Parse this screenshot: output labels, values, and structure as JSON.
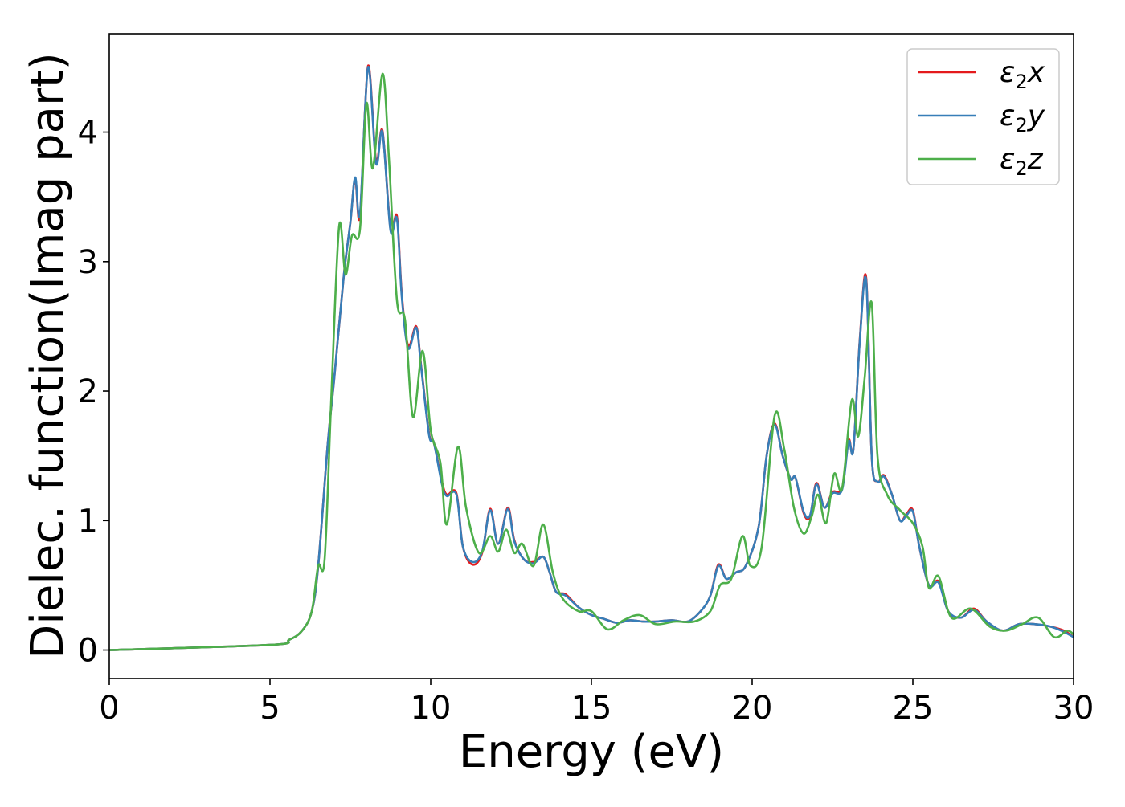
{
  "chart_data": {
    "type": "line",
    "xlabel": "Energy (eV)",
    "ylabel": "Dielec. function(Imag part)",
    "xlim": [
      0,
      30
    ],
    "ylim": [
      -0.22,
      4.76
    ],
    "xticks": [
      0,
      5,
      10,
      15,
      20,
      25,
      30
    ],
    "yticks": [
      0,
      1,
      2,
      3,
      4
    ],
    "grid": false,
    "legend_position": "top-right",
    "series": [
      {
        "name": "ε2x",
        "legend_base": "ε",
        "legend_sub": "2",
        "legend_var": "x",
        "color": "#e41a1c",
        "x": [
          0,
          5,
          5.6,
          6.0,
          6.3,
          6.5,
          6.8,
          7.0,
          7.3,
          7.5,
          7.65,
          7.8,
          8.05,
          8.3,
          8.5,
          8.75,
          8.95,
          9.1,
          9.3,
          9.55,
          9.7,
          9.95,
          10.1,
          10.35,
          10.5,
          10.8,
          11.0,
          11.3,
          11.6,
          11.85,
          12.1,
          12.4,
          12.6,
          12.9,
          13.2,
          13.5,
          13.7,
          13.9,
          14.2,
          14.6,
          15.0,
          15.4,
          15.8,
          16.2,
          16.6,
          17.0,
          17.5,
          18.0,
          18.4,
          18.7,
          18.95,
          19.2,
          19.5,
          19.8,
          20.2,
          20.45,
          20.7,
          20.95,
          21.2,
          21.35,
          21.6,
          21.8,
          22.0,
          22.25,
          22.5,
          22.8,
          23.0,
          23.15,
          23.35,
          23.55,
          23.72,
          23.9,
          24.1,
          24.35,
          24.6,
          24.8,
          25.0,
          25.2,
          25.5,
          25.8,
          26.1,
          26.5,
          26.9,
          27.3,
          27.8,
          28.3,
          28.8,
          29.3,
          29.7,
          30
        ],
        "y": [
          0,
          0.04,
          0.08,
          0.15,
          0.3,
          0.65,
          1.6,
          2.1,
          2.9,
          3.3,
          3.64,
          3.35,
          4.51,
          3.78,
          4.01,
          3.25,
          3.35,
          2.75,
          2.35,
          2.5,
          2.2,
          1.67,
          1.6,
          1.3,
          1.2,
          1.21,
          0.8,
          0.66,
          0.75,
          1.09,
          0.82,
          1.1,
          0.85,
          0.7,
          0.68,
          0.72,
          0.6,
          0.45,
          0.43,
          0.33,
          0.27,
          0.24,
          0.21,
          0.23,
          0.22,
          0.22,
          0.23,
          0.22,
          0.3,
          0.42,
          0.66,
          0.55,
          0.6,
          0.65,
          0.95,
          1.5,
          1.75,
          1.5,
          1.32,
          1.33,
          1.06,
          1.03,
          1.29,
          1.1,
          1.22,
          1.25,
          1.62,
          1.55,
          2.4,
          2.87,
          1.5,
          1.3,
          1.35,
          1.2,
          1.0,
          1.05,
          1.08,
          0.8,
          0.5,
          0.53,
          0.3,
          0.25,
          0.32,
          0.22,
          0.15,
          0.2,
          0.2,
          0.18,
          0.15,
          0.1
        ]
      },
      {
        "name": "ε2y",
        "legend_base": "ε",
        "legend_sub": "2",
        "legend_var": "y",
        "color": "#377eb8",
        "x": [
          0,
          5,
          5.6,
          6.0,
          6.3,
          6.5,
          6.8,
          7.0,
          7.3,
          7.5,
          7.65,
          7.8,
          8.05,
          8.3,
          8.5,
          8.75,
          8.95,
          9.1,
          9.3,
          9.55,
          9.7,
          9.95,
          10.1,
          10.35,
          10.5,
          10.8,
          11.0,
          11.3,
          11.6,
          11.85,
          12.1,
          12.4,
          12.6,
          12.9,
          13.2,
          13.5,
          13.7,
          13.9,
          14.2,
          14.6,
          15.0,
          15.4,
          15.8,
          16.2,
          16.6,
          17.0,
          17.5,
          18.0,
          18.4,
          18.7,
          18.95,
          19.2,
          19.5,
          19.8,
          20.2,
          20.45,
          20.7,
          20.95,
          21.2,
          21.35,
          21.6,
          21.8,
          22.0,
          22.25,
          22.5,
          22.8,
          23.0,
          23.15,
          23.35,
          23.55,
          23.72,
          23.9,
          24.1,
          24.35,
          24.6,
          24.8,
          25.0,
          25.2,
          25.5,
          25.8,
          26.1,
          26.5,
          26.9,
          27.3,
          27.8,
          28.3,
          28.8,
          29.3,
          29.7,
          30
        ],
        "y": [
          0,
          0.04,
          0.08,
          0.15,
          0.3,
          0.65,
          1.6,
          2.1,
          2.9,
          3.3,
          3.65,
          3.37,
          4.5,
          3.76,
          4.0,
          3.24,
          3.33,
          2.73,
          2.33,
          2.49,
          2.19,
          1.66,
          1.6,
          1.28,
          1.19,
          1.2,
          0.8,
          0.68,
          0.76,
          1.08,
          0.82,
          1.09,
          0.84,
          0.7,
          0.67,
          0.72,
          0.6,
          0.45,
          0.42,
          0.33,
          0.27,
          0.24,
          0.21,
          0.23,
          0.22,
          0.22,
          0.23,
          0.22,
          0.3,
          0.42,
          0.65,
          0.55,
          0.6,
          0.65,
          0.95,
          1.5,
          1.74,
          1.5,
          1.32,
          1.33,
          1.07,
          1.04,
          1.28,
          1.1,
          1.21,
          1.24,
          1.61,
          1.55,
          2.39,
          2.85,
          1.5,
          1.3,
          1.34,
          1.2,
          1.0,
          1.04,
          1.07,
          0.8,
          0.5,
          0.52,
          0.3,
          0.25,
          0.31,
          0.22,
          0.15,
          0.2,
          0.2,
          0.18,
          0.14,
          0.1
        ]
      },
      {
        "name": "ε2z",
        "legend_base": "ε",
        "legend_sub": "2",
        "legend_var": "z",
        "color": "#4daf4a",
        "x": [
          0,
          5,
          5.6,
          6.0,
          6.3,
          6.5,
          6.7,
          6.9,
          7.15,
          7.35,
          7.55,
          7.8,
          8.0,
          8.2,
          8.5,
          8.7,
          8.95,
          9.2,
          9.45,
          9.75,
          10.0,
          10.3,
          10.5,
          10.85,
          11.1,
          11.5,
          11.85,
          12.1,
          12.35,
          12.6,
          12.85,
          13.2,
          13.5,
          13.8,
          14.1,
          14.6,
          15.0,
          15.5,
          16.0,
          16.5,
          17.0,
          17.6,
          18.2,
          18.7,
          19.0,
          19.35,
          19.7,
          19.95,
          20.3,
          20.7,
          21.0,
          21.3,
          21.6,
          21.85,
          22.05,
          22.3,
          22.55,
          22.8,
          23.1,
          23.3,
          23.5,
          23.72,
          23.9,
          24.2,
          24.6,
          25.0,
          25.3,
          25.5,
          25.8,
          26.2,
          26.8,
          27.4,
          27.9,
          28.4,
          28.9,
          29.4,
          29.8,
          30
        ],
        "y": [
          0,
          0.04,
          0.08,
          0.15,
          0.3,
          0.65,
          0.7,
          1.9,
          3.27,
          2.9,
          3.2,
          3.25,
          4.22,
          3.72,
          4.45,
          3.8,
          2.7,
          2.55,
          1.8,
          2.31,
          1.7,
          1.45,
          0.97,
          1.57,
          1.1,
          0.75,
          0.88,
          0.76,
          0.93,
          0.75,
          0.82,
          0.65,
          0.97,
          0.6,
          0.4,
          0.3,
          0.3,
          0.16,
          0.23,
          0.27,
          0.2,
          0.22,
          0.22,
          0.3,
          0.5,
          0.55,
          0.88,
          0.65,
          0.8,
          1.81,
          1.55,
          1.1,
          0.9,
          1.03,
          1.2,
          0.98,
          1.36,
          1.25,
          1.93,
          1.65,
          2.1,
          2.68,
          1.5,
          1.2,
          1.08,
          0.98,
          0.8,
          0.48,
          0.57,
          0.25,
          0.32,
          0.18,
          0.15,
          0.2,
          0.25,
          0.1,
          0.15,
          0.12
        ]
      }
    ]
  }
}
